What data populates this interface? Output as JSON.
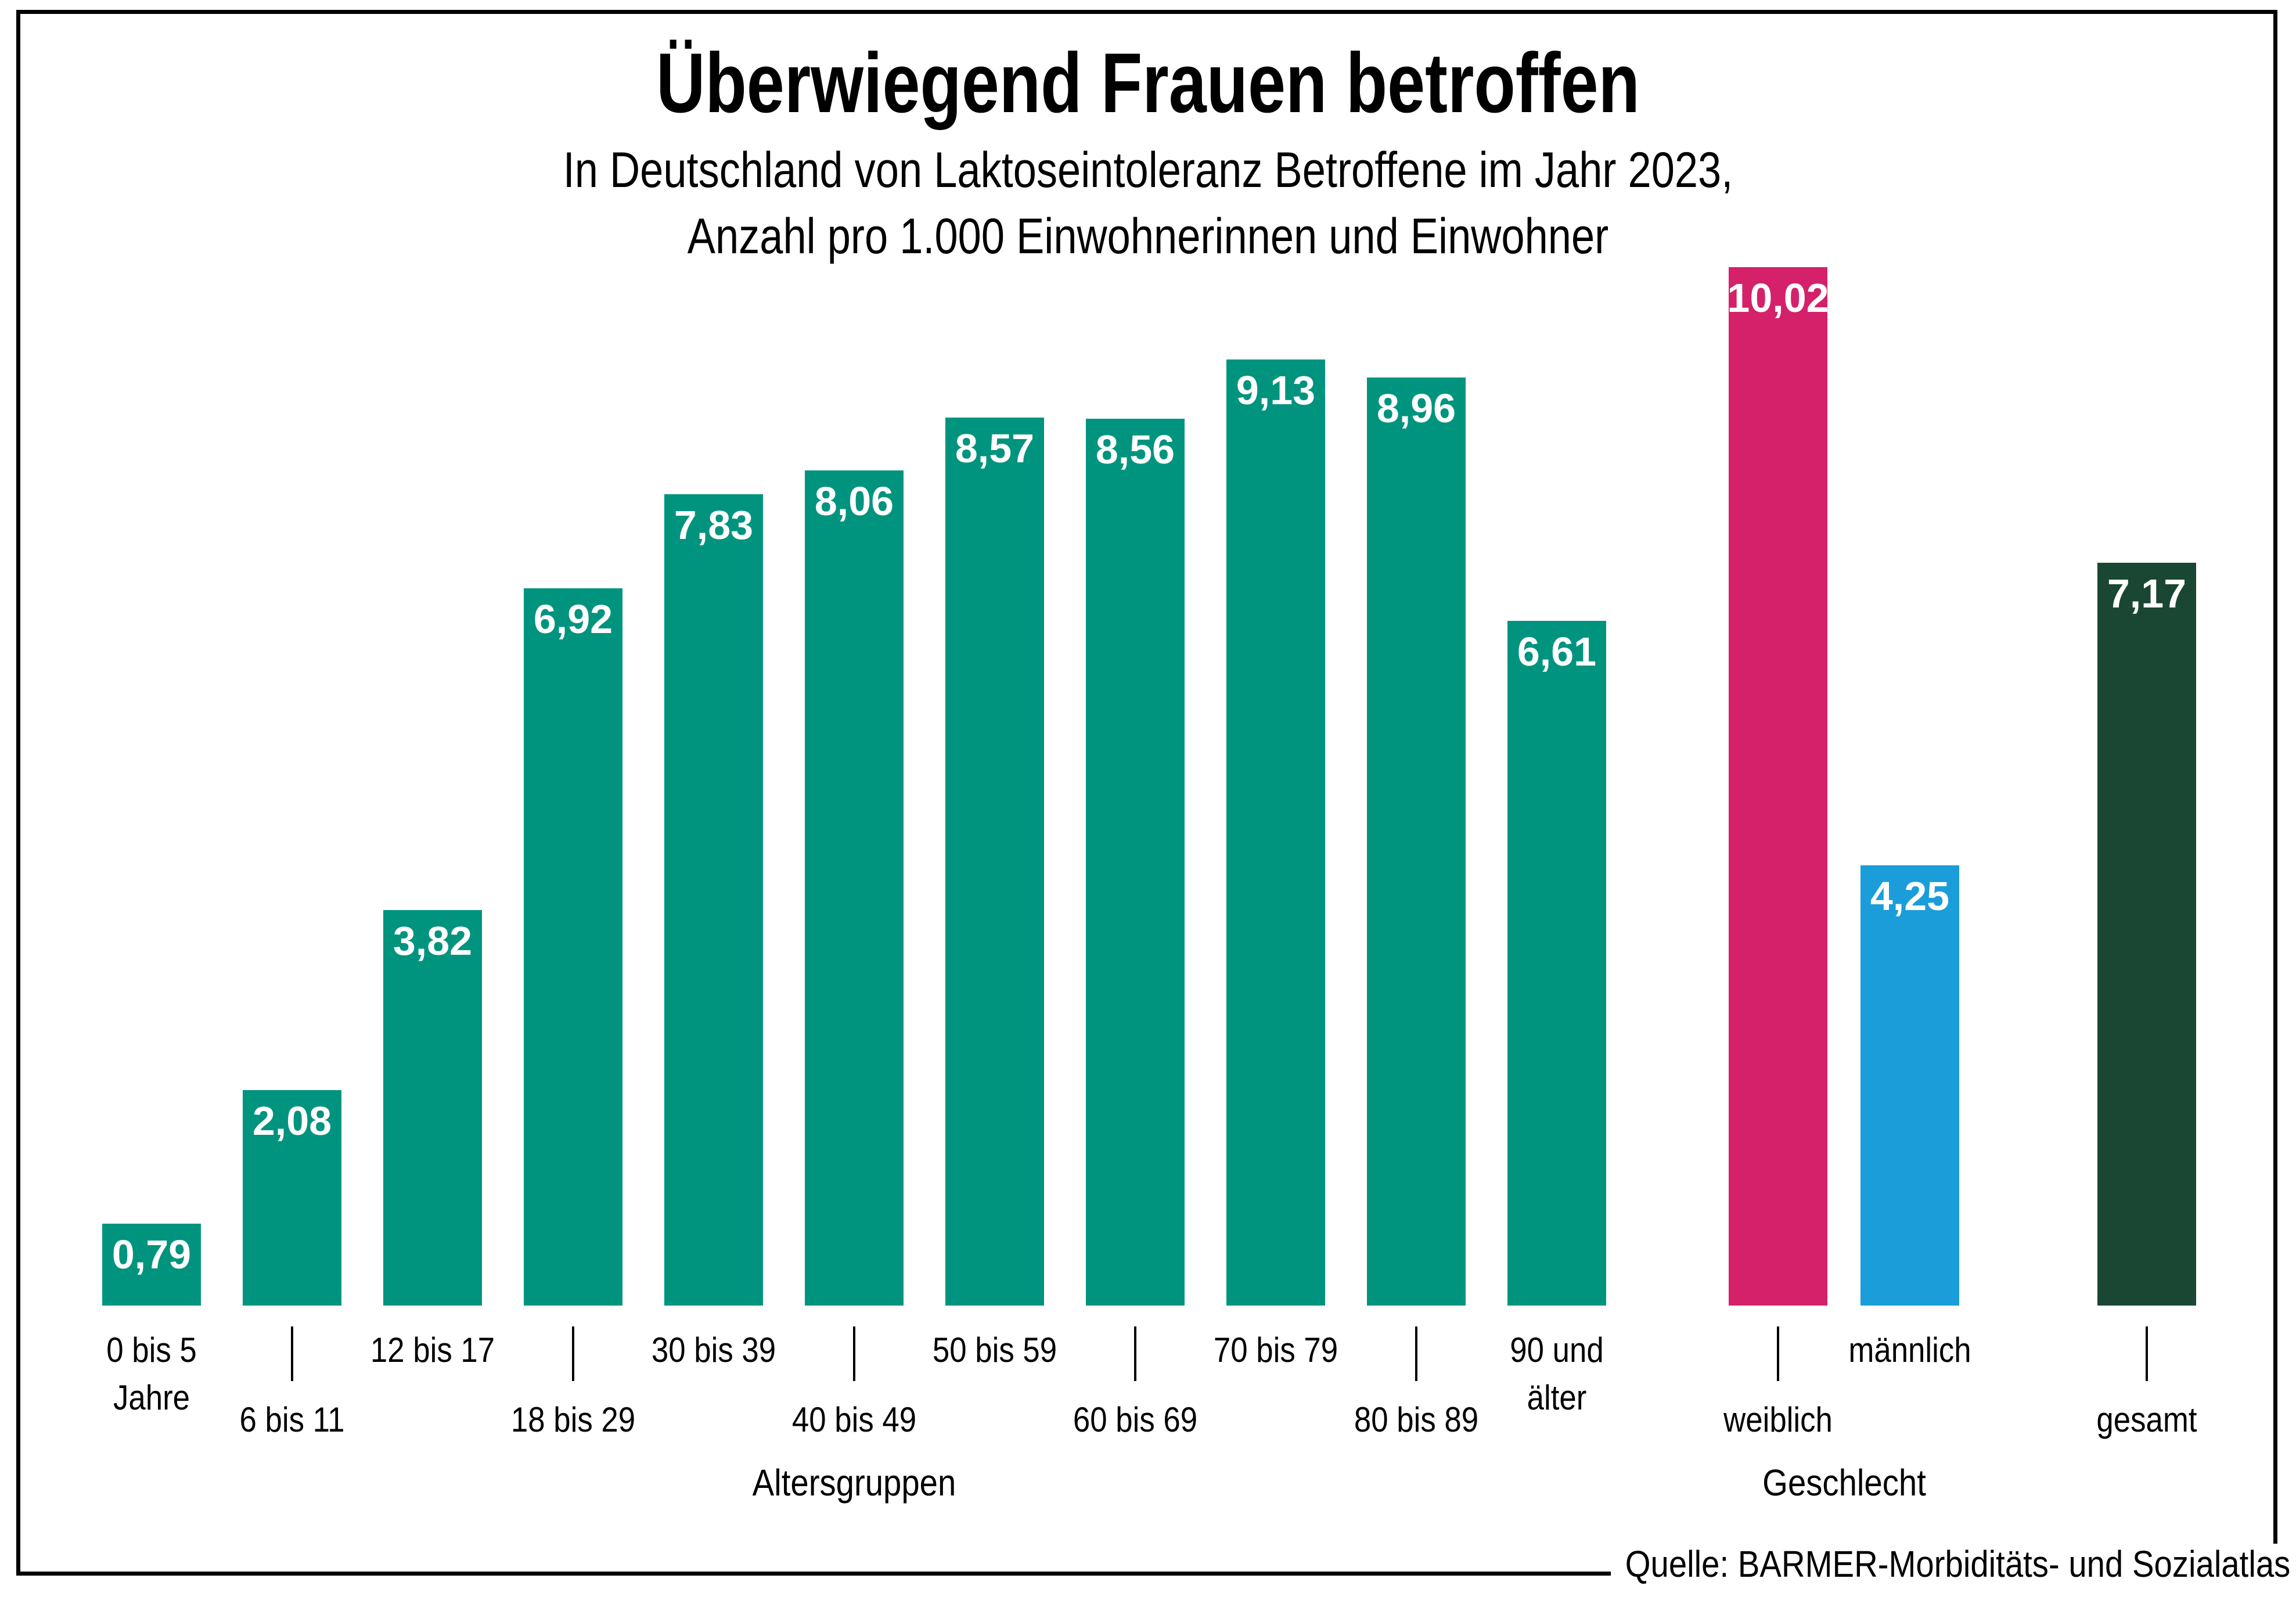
{
  "chart_data": {
    "type": "bar",
    "title": "Überwiegend Frauen betroffen",
    "subtitle_lines": [
      "In Deutschland von Laktoseintoleranz Betroffene im Jahr 2023,",
      "Anzahl pro 1.000 Einwohnerinnen und Einwohner"
    ],
    "xlabel_age": "Altersgruppen",
    "xlabel_gender": "Geschlecht",
    "source": "Quelle: BARMER-Morbiditäts- und Sozialatlas",
    "ylim": [
      0,
      10.5
    ],
    "grid": false,
    "legend": "none",
    "colors": {
      "age": "#00947E",
      "weiblich": "#D4216A",
      "maennlich": "#1B9DD9",
      "gesamt": "#1A4733"
    },
    "bars": [
      {
        "group": "age",
        "category": "0 bis 5 Jahre",
        "label_top": "0 bis 5",
        "label_bottom": "Jahre",
        "value": 0.79,
        "display": "0,79",
        "color_key": "age",
        "tick": false
      },
      {
        "group": "age",
        "category": "6 bis 11",
        "label_top": "",
        "label_bottom": "6 bis 11",
        "value": 2.08,
        "display": "2,08",
        "color_key": "age",
        "tick": true
      },
      {
        "group": "age",
        "category": "12 bis 17",
        "label_top": "12 bis 17",
        "label_bottom": "",
        "value": 3.82,
        "display": "3,82",
        "color_key": "age",
        "tick": false
      },
      {
        "group": "age",
        "category": "18 bis 29",
        "label_top": "",
        "label_bottom": "18 bis 29",
        "value": 6.92,
        "display": "6,92",
        "color_key": "age",
        "tick": true
      },
      {
        "group": "age",
        "category": "30 bis 39",
        "label_top": "30 bis 39",
        "label_bottom": "",
        "value": 7.83,
        "display": "7,83",
        "color_key": "age",
        "tick": false
      },
      {
        "group": "age",
        "category": "40 bis 49",
        "label_top": "",
        "label_bottom": "40 bis 49",
        "value": 8.06,
        "display": "8,06",
        "color_key": "age",
        "tick": true
      },
      {
        "group": "age",
        "category": "50 bis 59",
        "label_top": "50 bis 59",
        "label_bottom": "",
        "value": 8.57,
        "display": "8,57",
        "color_key": "age",
        "tick": false
      },
      {
        "group": "age",
        "category": "60 bis 69",
        "label_top": "",
        "label_bottom": "60 bis 69",
        "value": 8.56,
        "display": "8,56",
        "color_key": "age",
        "tick": true
      },
      {
        "group": "age",
        "category": "70 bis 79",
        "label_top": "70 bis 79",
        "label_bottom": "",
        "value": 9.13,
        "display": "9,13",
        "color_key": "age",
        "tick": false
      },
      {
        "group": "age",
        "category": "80 bis 89",
        "label_top": "",
        "label_bottom": "80 bis 89",
        "value": 8.96,
        "display": "8,96",
        "color_key": "age",
        "tick": true
      },
      {
        "group": "age",
        "category": "90 und älter",
        "label_top": "90 und",
        "label_bottom": "älter",
        "value": 6.61,
        "display": "6,61",
        "color_key": "age",
        "tick": false
      },
      {
        "group": "gender",
        "category": "weiblich",
        "label_top": "",
        "label_bottom": "weiblich",
        "value": 10.02,
        "display": "10,02",
        "color_key": "weiblich",
        "tick": true
      },
      {
        "group": "gender",
        "category": "männlich",
        "label_top": "männlich",
        "label_bottom": "",
        "value": 4.25,
        "display": "4,25",
        "color_key": "maennlich",
        "tick": false
      },
      {
        "group": "total",
        "category": "gesamt",
        "label_top": "",
        "label_bottom": "gesamt",
        "value": 7.17,
        "display": "7,17",
        "color_key": "gesamt",
        "tick": true
      }
    ]
  }
}
